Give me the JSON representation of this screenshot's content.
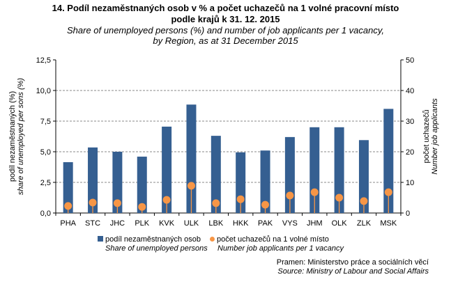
{
  "chart_data": {
    "type": "bar",
    "title": "14. Podíl nezaměstnaných  osob v % a počet uchazečů  na 1 volné pracovní místo",
    "title_line2": "podle krajů k 31. 12. 2015",
    "subtitle": "Share of unemployed persons (%) and number of job applicants per 1 vacancy,",
    "subtitle_line2": "by Region, as at 31 December 2015",
    "categories": [
      "PHA",
      "STC",
      "JHC",
      "PLK",
      "KVK",
      "ULK",
      "LBK",
      "HKK",
      "PAK",
      "VYS",
      "JHM",
      "OLK",
      "ZLK",
      "MSK"
    ],
    "series": [
      {
        "name": "podíl nezaměstnaných osob",
        "name_en": "Share of unemployed persons",
        "type": "bar",
        "axis": "left",
        "color": "#355F91",
        "values": [
          4.15,
          5.35,
          5.0,
          4.6,
          7.05,
          8.85,
          6.3,
          4.95,
          5.1,
          6.2,
          7.0,
          7.0,
          5.95,
          8.5
        ]
      },
      {
        "name": "počet uchazečů na 1 volné místo",
        "name_en": "Number job applicants per 1 vacancy",
        "type": "lollipop",
        "axis": "right",
        "color": "#F79646",
        "values": [
          2.3,
          3.4,
          3.2,
          2.0,
          4.3,
          8.9,
          3.2,
          4.5,
          2.7,
          5.7,
          6.8,
          5.0,
          3.9,
          6.8
        ]
      }
    ],
    "ylabel": "podíl nezaměstnaných (%)",
    "ylabel_en": "share of unemployed per sons (%)",
    "y2label": "počet uchazečů",
    "y2label_en": "Number job applicants",
    "ylim": [
      0,
      12.5
    ],
    "yticks": [
      "0,0",
      "2,5",
      "5,0",
      "7,5",
      "10,0",
      "12,5"
    ],
    "y2lim": [
      0,
      50
    ],
    "y2ticks": [
      "0",
      "10",
      "20",
      "30",
      "40",
      "50"
    ],
    "grid": true,
    "legend": "bottom"
  },
  "source": {
    "cz": "Pramen: Ministerstvo práce a sociálních věcí",
    "en": "Source: Ministry of Labour and Social Affairs"
  }
}
